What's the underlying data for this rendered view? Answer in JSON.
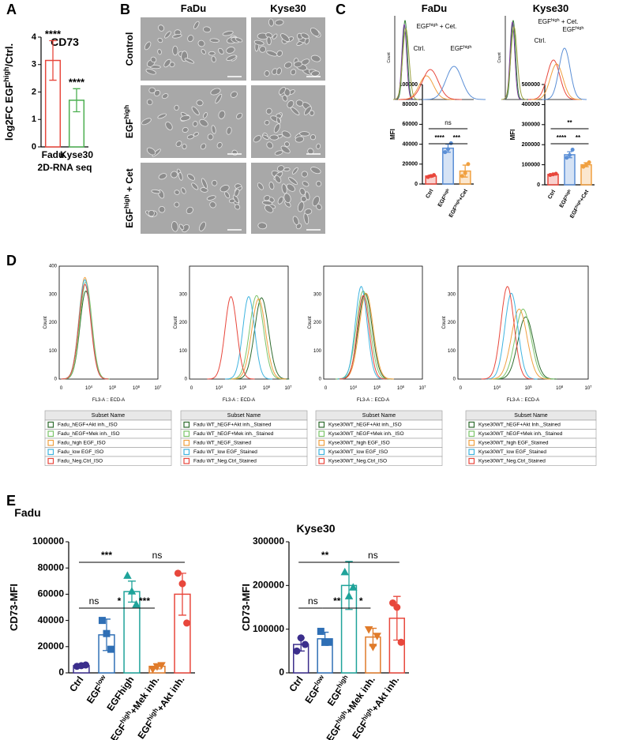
{
  "panel_labels": [
    "A",
    "B",
    "C",
    "D",
    "E"
  ],
  "chart_data": [
    {
      "type": "bar",
      "title": "CD73",
      "ylabel": [
        {
          "t": "log2FC EGF"
        },
        {
          "sup": "high"
        },
        {
          "t": "/Ctrl."
        }
      ],
      "xlabel": "2D-RNA seq",
      "categories": [
        "Fadu",
        "Kyse30"
      ],
      "values": [
        3.15,
        1.7
      ],
      "errors": [
        0.72,
        0.42
      ],
      "colors": [
        "#e8473c",
        "#4caf50"
      ],
      "ylim": [
        0,
        4
      ],
      "yticks": [
        0,
        1,
        2,
        3,
        4
      ],
      "annotations": [
        {
          "text": "****",
          "span": [
            0,
            0
          ]
        },
        {
          "text": "****",
          "span": [
            1,
            1
          ]
        }
      ]
    },
    {
      "type": "bar",
      "ylabel": "MFI",
      "categories": [
        "Ctrl",
        [
          {
            "t": "EGF"
          },
          {
            "sup": "high"
          }
        ],
        [
          {
            "t": "EGF"
          },
          {
            "sup": "high"
          },
          {
            "t": "+Cet"
          }
        ]
      ],
      "values": [
        8000,
        36000,
        13000
      ],
      "errors": [
        1000,
        4000,
        6000
      ],
      "points": [
        [
          7000,
          8000,
          9000
        ],
        [
          32000,
          35000,
          41000
        ],
        [
          8000,
          11000,
          20000
        ]
      ],
      "colors": [
        "#e8473c",
        "#5b8fd6",
        "#f0a040"
      ],
      "ylim": [
        0,
        100000
      ],
      "yticks": [
        0,
        20000,
        40000,
        60000,
        80000,
        100000
      ],
      "annotations": [
        {
          "text": "ns",
          "span": [
            0,
            2
          ]
        },
        {
          "text": "****",
          "span": [
            0,
            1
          ]
        },
        {
          "text": "***",
          "span": [
            1,
            2
          ]
        }
      ]
    },
    {
      "type": "bar",
      "ylabel": "MFI",
      "categories": [
        "Ctrl",
        [
          {
            "t": "EGF"
          },
          {
            "sup": "high"
          }
        ],
        [
          {
            "t": "EGF"
          },
          {
            "sup": "high"
          },
          {
            "t": "+Cet"
          }
        ]
      ],
      "values": [
        52000,
        150000,
        100000
      ],
      "errors": [
        3000,
        15000,
        10000
      ],
      "points": [
        [
          49000,
          52000,
          55000
        ],
        [
          135000,
          148000,
          175000
        ],
        [
          90000,
          100000,
          112000
        ]
      ],
      "colors": [
        "#e8473c",
        "#5b8fd6",
        "#f0a040"
      ],
      "ylim": [
        0,
        500000
      ],
      "yticks": [
        0,
        100000,
        200000,
        300000,
        400000,
        500000
      ],
      "annotations": [
        {
          "text": "**",
          "span": [
            0,
            2
          ]
        },
        {
          "text": "****",
          "span": [
            0,
            1
          ]
        },
        {
          "text": "**",
          "span": [
            1,
            2
          ]
        }
      ]
    },
    {
      "type": "bar",
      "title": "Fadu",
      "ylabel": "CD73-MFI",
      "categories": [
        "Ctrl",
        [
          {
            "t": "EGF"
          },
          {
            "sup": "low"
          }
        ],
        "EGFhigh",
        [
          {
            "t": "EGF"
          },
          {
            "sup": "high"
          },
          {
            "t": "+Mek inh."
          }
        ],
        [
          {
            "t": "EGF"
          },
          {
            "sup": "high"
          },
          {
            "t": "+Akt inh."
          }
        ]
      ],
      "values": [
        5500,
        29000,
        62000,
        5000,
        60000
      ],
      "errors": [
        500,
        12000,
        8000,
        2000,
        16000
      ],
      "points": [
        [
          5000,
          5500,
          6000
        ],
        [
          40000,
          30000,
          18000
        ],
        [
          74000,
          62000,
          52000
        ],
        [
          3000,
          5000,
          6000
        ],
        [
          76000,
          68000,
          38000
        ]
      ],
      "colors": [
        "#3b2e8c",
        "#2f6fb5",
        "#1fa39a",
        "#e07b2a",
        "#e8473c"
      ],
      "markers": [
        "circle",
        "square",
        "triangle",
        "triangle-down",
        "circle"
      ],
      "ylim": [
        0,
        100000
      ],
      "yticks": [
        0,
        20000,
        40000,
        60000,
        80000,
        100000
      ],
      "annotations": [
        {
          "text": "***",
          "span": [
            0,
            2
          ]
        },
        {
          "text": "ns",
          "span": [
            2,
            4
          ]
        },
        {
          "text": "ns",
          "span": [
            0,
            1
          ]
        },
        {
          "text": "*",
          "span": [
            1,
            2
          ]
        },
        {
          "text": "***",
          "span": [
            2,
            3
          ]
        }
      ]
    },
    {
      "type": "bar",
      "title": "Kyse30",
      "ylabel": "CD73-MFI",
      "categories": [
        "Ctrl",
        [
          {
            "t": "EGF"
          },
          {
            "sup": "low"
          }
        ],
        [
          {
            "t": "EGF"
          },
          {
            "sup": "high"
          }
        ],
        [
          {
            "t": "EGF"
          },
          {
            "sup": "high"
          },
          {
            "t": "+Mek inh."
          }
        ],
        [
          {
            "t": "EGF"
          },
          {
            "sup": "high"
          },
          {
            "t": "+Akt inh."
          }
        ]
      ],
      "values": [
        65000,
        78000,
        200000,
        82000,
        125000
      ],
      "errors": [
        15000,
        15000,
        55000,
        20000,
        50000
      ],
      "points": [
        [
          50000,
          80000,
          65000
        ],
        [
          95000,
          70000,
          70000
        ],
        [
          230000,
          175000,
          195000
        ],
        [
          100000,
          60000,
          85000
        ],
        [
          160000,
          150000,
          70000
        ]
      ],
      "colors": [
        "#3b2e8c",
        "#2f6fb5",
        "#1fa39a",
        "#e07b2a",
        "#e8473c"
      ],
      "markers": [
        "circle",
        "square",
        "triangle",
        "triangle-down",
        "circle"
      ],
      "ylim": [
        0,
        300000
      ],
      "yticks": [
        0,
        100000,
        200000,
        300000
      ],
      "annotations": [
        {
          "text": "**",
          "span": [
            0,
            2
          ]
        },
        {
          "text": "ns",
          "span": [
            2,
            4
          ]
        },
        {
          "text": "ns",
          "span": [
            0,
            1
          ]
        },
        {
          "text": "**",
          "span": [
            1,
            2
          ]
        },
        {
          "text": "*",
          "span": [
            2,
            3
          ]
        }
      ]
    }
  ],
  "microscopy": {
    "columns": [
      "FaDu",
      "Kyse30"
    ],
    "rows": [
      "Control",
      [
        {
          "t": "EGF"
        },
        {
          "sup": "high"
        }
      ],
      [
        {
          "t": "EGF"
        },
        {
          "sup": "high"
        },
        {
          "t": " + Cet"
        }
      ]
    ]
  },
  "flow_c": [
    {
      "title": "FaDu",
      "ylabel": "Count",
      "labels": [
        "Ctrl.",
        [
          {
            "t": "EGF"
          },
          {
            "sup": "high"
          },
          {
            "t": " + Cet."
          }
        ],
        [
          {
            "t": "EGF"
          },
          {
            "sup": "high"
          }
        ]
      ]
    },
    {
      "title": "Kyse30",
      "ylabel": "Count",
      "labels": [
        "Ctrl.",
        [
          {
            "t": "EGF"
          },
          {
            "sup": "high"
          },
          {
            "t": " + Cet."
          }
        ],
        [
          {
            "t": "EGF"
          },
          {
            "sup": "high"
          }
        ]
      ]
    }
  ],
  "flow_d": {
    "xlabel": "FL3-A :: ECD-A",
    "ylabel": "Count",
    "xticks": [
      "0",
      [
        {
          "t": "10"
        },
        {
          "sup": "4"
        }
      ],
      [
        {
          "t": "10"
        },
        {
          "sup": "5"
        }
      ],
      [
        {
          "t": "10"
        },
        {
          "sup": "6"
        }
      ],
      [
        {
          "t": "10"
        },
        {
          "sup": "7"
        }
      ]
    ],
    "colors": [
      "#2e6b2e",
      "#7cc46a",
      "#f0a040",
      "#3fb4e0",
      "#e8473c"
    ],
    "panels": [
      {
        "yticks": [
          400,
          300,
          200,
          100,
          0
        ],
        "table": {
          "header": "Subset Name",
          "rows": [
            "Fadu_hEGF+Akt inh._ISO",
            "Fadu_hEGF+Mek inh._ISO",
            "Fadu_high EGF_ISO",
            "Fadu_low EGF_ISO",
            "Fadu_Neg.Ctrl_ISO"
          ]
        }
      },
      {
        "yticks": [
          300,
          200,
          100,
          0
        ],
        "table": {
          "header": "Subset Name",
          "rows": [
            "Fadu WT_hEGF+Akt inh._Stained",
            "Fadu WT_hEGF+Mek inh._Stained",
            "Fadu WT_hEGF_Stained",
            "Fadu WT_low EGF_Stained",
            "Fadu WT_Neg.Ctrl_Stained"
          ]
        }
      },
      {
        "yticks": [
          300,
          200,
          100,
          0
        ],
        "table": {
          "header": "Subset Name",
          "rows": [
            "Kyse30WT_hEGF+Akt inh._ISO",
            "Kyse30WT_hEGF+Mek inh._ISO",
            "Kyse30WT_high EGF_ISO",
            "Kyse30WT_low EGF_ISO",
            "Kyse30WT_Neg.Ctrl_ISO"
          ]
        }
      },
      {
        "yticks": [
          300,
          200,
          100,
          0
        ],
        "table": {
          "header": "Subset Name",
          "rows": [
            "Kyse30WT_hEGF+Akt Inh._Stained",
            "Kyse30WT_hEGF+Mek inh._Stained",
            "Kyse30WT_high EGF_Stained",
            "Kyse30WT_low EGF_Stained",
            "Kyse30WT_Neg.Ctrl_Stained"
          ]
        }
      }
    ]
  }
}
